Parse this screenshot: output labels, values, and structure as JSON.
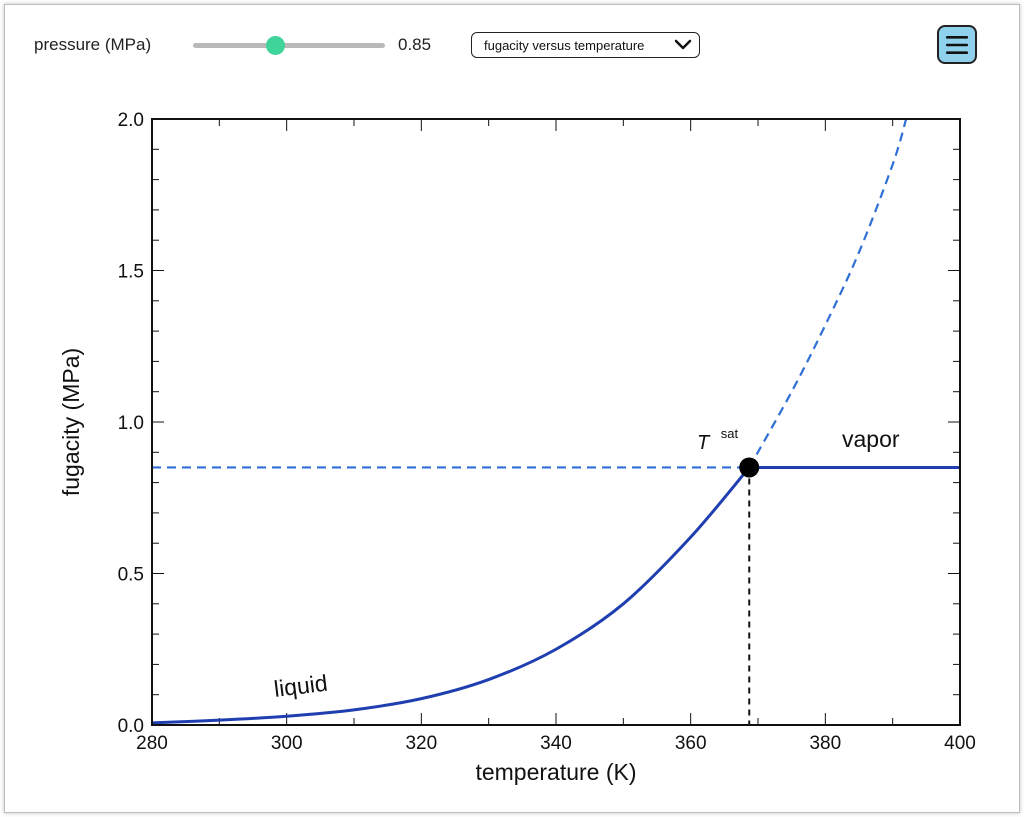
{
  "controls": {
    "slider_label": "pressure (MPa)",
    "slider_value": "0.85",
    "slider_min": 0,
    "slider_max": 2,
    "slider_current": 0.85,
    "dropdown_selected": "fugacity versus temperature",
    "dropdown_icon": "chevron-down-icon",
    "menu_icon": "hamburger-menu-icon",
    "accent_color": "#3fd49a",
    "menu_color": "#8fd1ec"
  },
  "chart_data": {
    "type": "line",
    "xlabel": "temperature (K)",
    "ylabel": "fugacity (MPa)",
    "xlim": [
      280,
      400
    ],
    "ylim": [
      0,
      2.0
    ],
    "x_ticks": [
      280,
      300,
      320,
      340,
      360,
      380,
      400
    ],
    "x_tick_labels": [
      "280",
      "300",
      "320",
      "340",
      "360",
      "380",
      "400"
    ],
    "y_ticks": [
      0,
      0.5,
      1.0,
      1.5,
      2.0
    ],
    "y_tick_labels": [
      "0.0",
      "0.5",
      "1.0",
      "1.5",
      "2.0"
    ],
    "grid": false,
    "pressure": 0.85,
    "t_sat": 368.7,
    "series": [
      {
        "name": "liquid",
        "style": "solid",
        "color": "#1f3fb0",
        "x": [
          280,
          290,
          300,
          310,
          320,
          330,
          340,
          350,
          360,
          368.7
        ],
        "y": [
          0.007,
          0.016,
          0.029,
          0.05,
          0.087,
          0.15,
          0.25,
          0.4,
          0.62,
          0.85
        ]
      },
      {
        "name": "liquid-metastable",
        "style": "dashed",
        "color": "#2f6fd6",
        "x": [
          368.7,
          375,
          380,
          385,
          390,
          392
        ],
        "y": [
          0.85,
          1.1,
          1.32,
          1.56,
          1.85,
          2.0
        ]
      },
      {
        "name": "vapor",
        "style": "solid",
        "color": "#1f3fb0",
        "x": [
          368.7,
          400
        ],
        "y": [
          0.85,
          0.85
        ]
      },
      {
        "name": "vapor-metastable",
        "style": "dashed",
        "color": "#2f6fd6",
        "x": [
          280,
          368.7
        ],
        "y": [
          0.85,
          0.85
        ]
      }
    ],
    "annotations": {
      "liquid": "liquid",
      "vapor": "vapor",
      "tsat_base": "T",
      "tsat_sup": "sat"
    }
  }
}
